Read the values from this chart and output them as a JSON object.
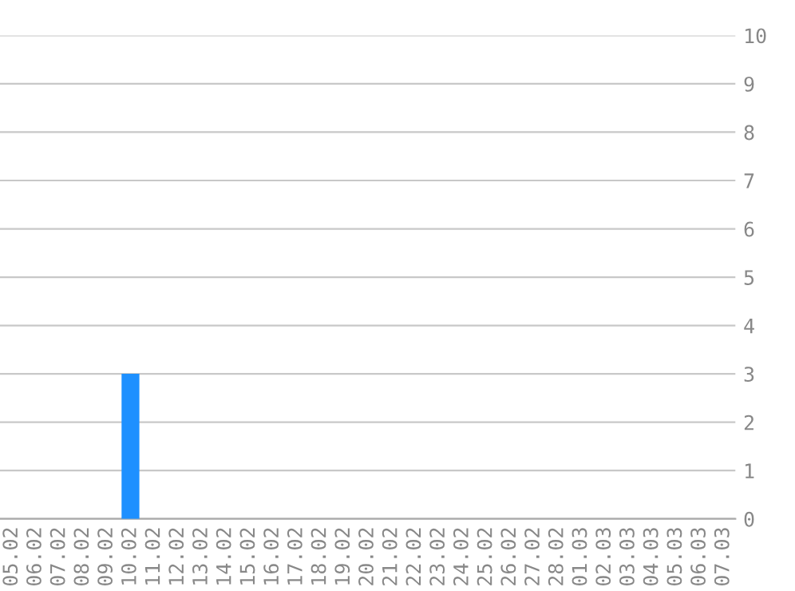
{
  "chart_data": {
    "type": "bar",
    "categories": [
      "05.02",
      "06.02",
      "07.02",
      "08.02",
      "09.02",
      "10.02",
      "11.02",
      "12.02",
      "13.02",
      "14.02",
      "15.02",
      "16.02",
      "17.02",
      "18.02",
      "19.02",
      "20.02",
      "21.02",
      "22.02",
      "23.02",
      "24.02",
      "25.02",
      "26.02",
      "27.02",
      "28.02",
      "01.03",
      "02.03",
      "03.03",
      "04.03",
      "05.03",
      "06.03",
      "07.03"
    ],
    "values": [
      0,
      0,
      0,
      0,
      0,
      3,
      0,
      0,
      0,
      0,
      0,
      0,
      0,
      0,
      0,
      0,
      0,
      0,
      0,
      0,
      0,
      0,
      0,
      0,
      0,
      0,
      0,
      0,
      0,
      0,
      0
    ],
    "color": "#1e90ff",
    "ylim": [
      0,
      10
    ],
    "yticks": [
      0,
      1,
      2,
      3,
      4,
      5,
      6,
      7,
      8,
      9,
      10
    ],
    "grid": "y"
  }
}
